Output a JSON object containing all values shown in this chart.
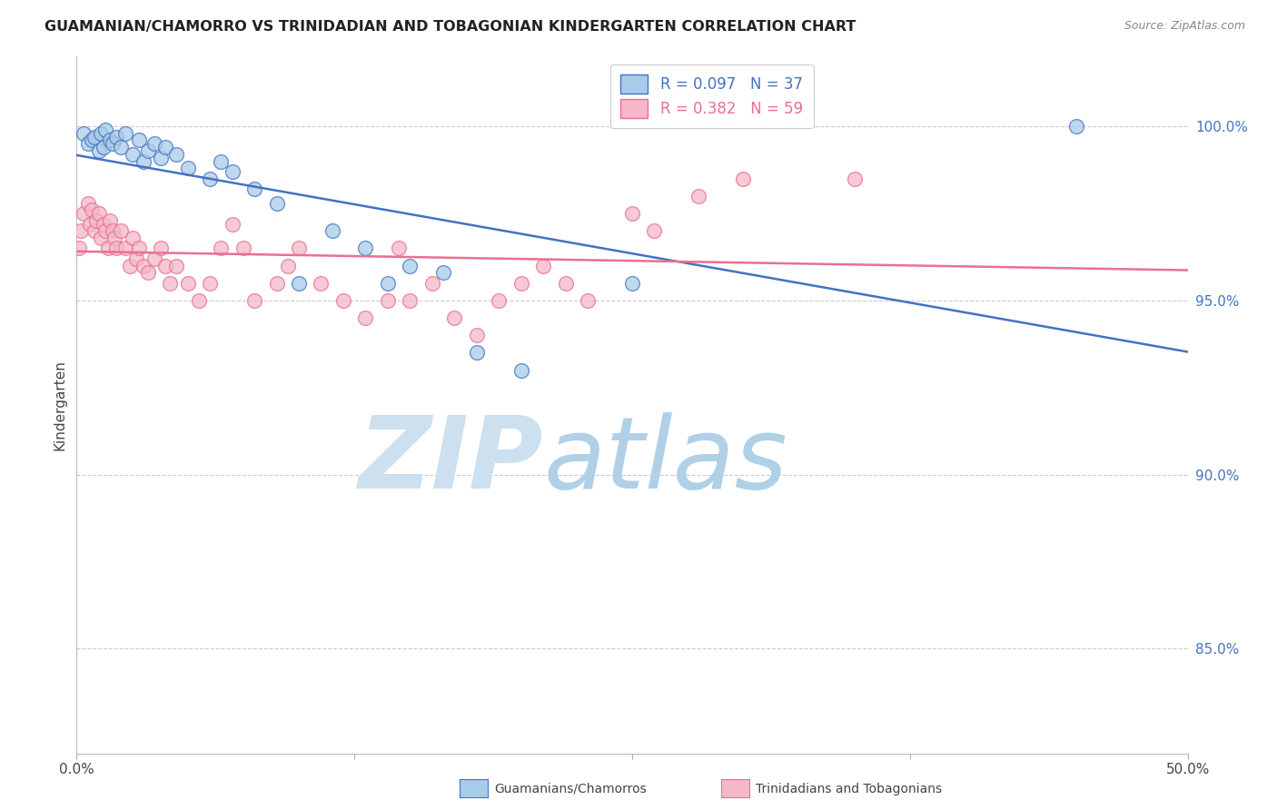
{
  "title": "GUAMANIAN/CHAMORRO VS TRINIDADIAN AND TOBAGONIAN KINDERGARTEN CORRELATION CHART",
  "source": "Source: ZipAtlas.com",
  "ylabel": "Kindergarten",
  "legend_label1": "Guamanians/Chamorros",
  "legend_label2": "Trinidadians and Tobagonians",
  "R1": 0.097,
  "N1": 37,
  "R2": 0.382,
  "N2": 59,
  "blue_color": "#a8cce8",
  "pink_color": "#f4b8c8",
  "blue_edge_color": "#4472c4",
  "pink_edge_color": "#e87090",
  "blue_line_color": "#4472c4",
  "pink_line_color": "#e87090",
  "watermark_zip_color": "#cce0f0",
  "watermark_atlas_color": "#b0d0e8",
  "background_color": "#ffffff",
  "grid_color": "#cccccc",
  "right_axis_color": "#4472c4",
  "ylabel_right_labels": [
    "100.0%",
    "95.0%",
    "90.0%",
    "85.0%"
  ],
  "ylabel_right_values": [
    100.0,
    95.0,
    90.0,
    85.0
  ],
  "xlim": [
    0,
    50
  ],
  "ylim": [
    82,
    102
  ],
  "blue_dots_x": [
    0.3,
    0.5,
    0.7,
    0.8,
    1.0,
    1.1,
    1.2,
    1.3,
    1.5,
    1.6,
    1.8,
    2.0,
    2.2,
    2.5,
    2.8,
    3.0,
    3.2,
    3.5,
    3.8,
    4.0,
    4.5,
    5.0,
    6.0,
    6.5,
    7.0,
    8.0,
    9.0,
    10.0,
    11.5,
    13.0,
    14.0,
    15.0,
    16.5,
    18.0,
    20.0,
    25.0,
    45.0
  ],
  "blue_dots_y": [
    99.8,
    99.5,
    99.6,
    99.7,
    99.3,
    99.8,
    99.4,
    99.9,
    99.6,
    99.5,
    99.7,
    99.4,
    99.8,
    99.2,
    99.6,
    99.0,
    99.3,
    99.5,
    99.1,
    99.4,
    99.2,
    98.8,
    98.5,
    99.0,
    98.7,
    98.2,
    97.8,
    95.5,
    97.0,
    96.5,
    95.5,
    96.0,
    95.8,
    93.5,
    93.0,
    95.5,
    100.0
  ],
  "pink_dots_x": [
    0.1,
    0.2,
    0.3,
    0.5,
    0.6,
    0.7,
    0.8,
    0.9,
    1.0,
    1.1,
    1.2,
    1.3,
    1.4,
    1.5,
    1.6,
    1.7,
    1.8,
    2.0,
    2.2,
    2.4,
    2.5,
    2.7,
    2.8,
    3.0,
    3.2,
    3.5,
    3.8,
    4.0,
    4.2,
    4.5,
    5.0,
    5.5,
    6.0,
    6.5,
    7.0,
    7.5,
    8.0,
    9.0,
    9.5,
    10.0,
    11.0,
    12.0,
    13.0,
    14.0,
    14.5,
    15.0,
    16.0,
    17.0,
    18.0,
    19.0,
    20.0,
    21.0,
    22.0,
    23.0,
    25.0,
    26.0,
    28.0,
    30.0,
    35.0
  ],
  "pink_dots_y": [
    96.5,
    97.0,
    97.5,
    97.8,
    97.2,
    97.6,
    97.0,
    97.3,
    97.5,
    96.8,
    97.2,
    97.0,
    96.5,
    97.3,
    97.0,
    96.8,
    96.5,
    97.0,
    96.5,
    96.0,
    96.8,
    96.2,
    96.5,
    96.0,
    95.8,
    96.2,
    96.5,
    96.0,
    95.5,
    96.0,
    95.5,
    95.0,
    95.5,
    96.5,
    97.2,
    96.5,
    95.0,
    95.5,
    96.0,
    96.5,
    95.5,
    95.0,
    94.5,
    95.0,
    96.5,
    95.0,
    95.5,
    94.5,
    94.0,
    95.0,
    95.5,
    96.0,
    95.5,
    95.0,
    97.5,
    97.0,
    98.0,
    98.5,
    98.5
  ]
}
